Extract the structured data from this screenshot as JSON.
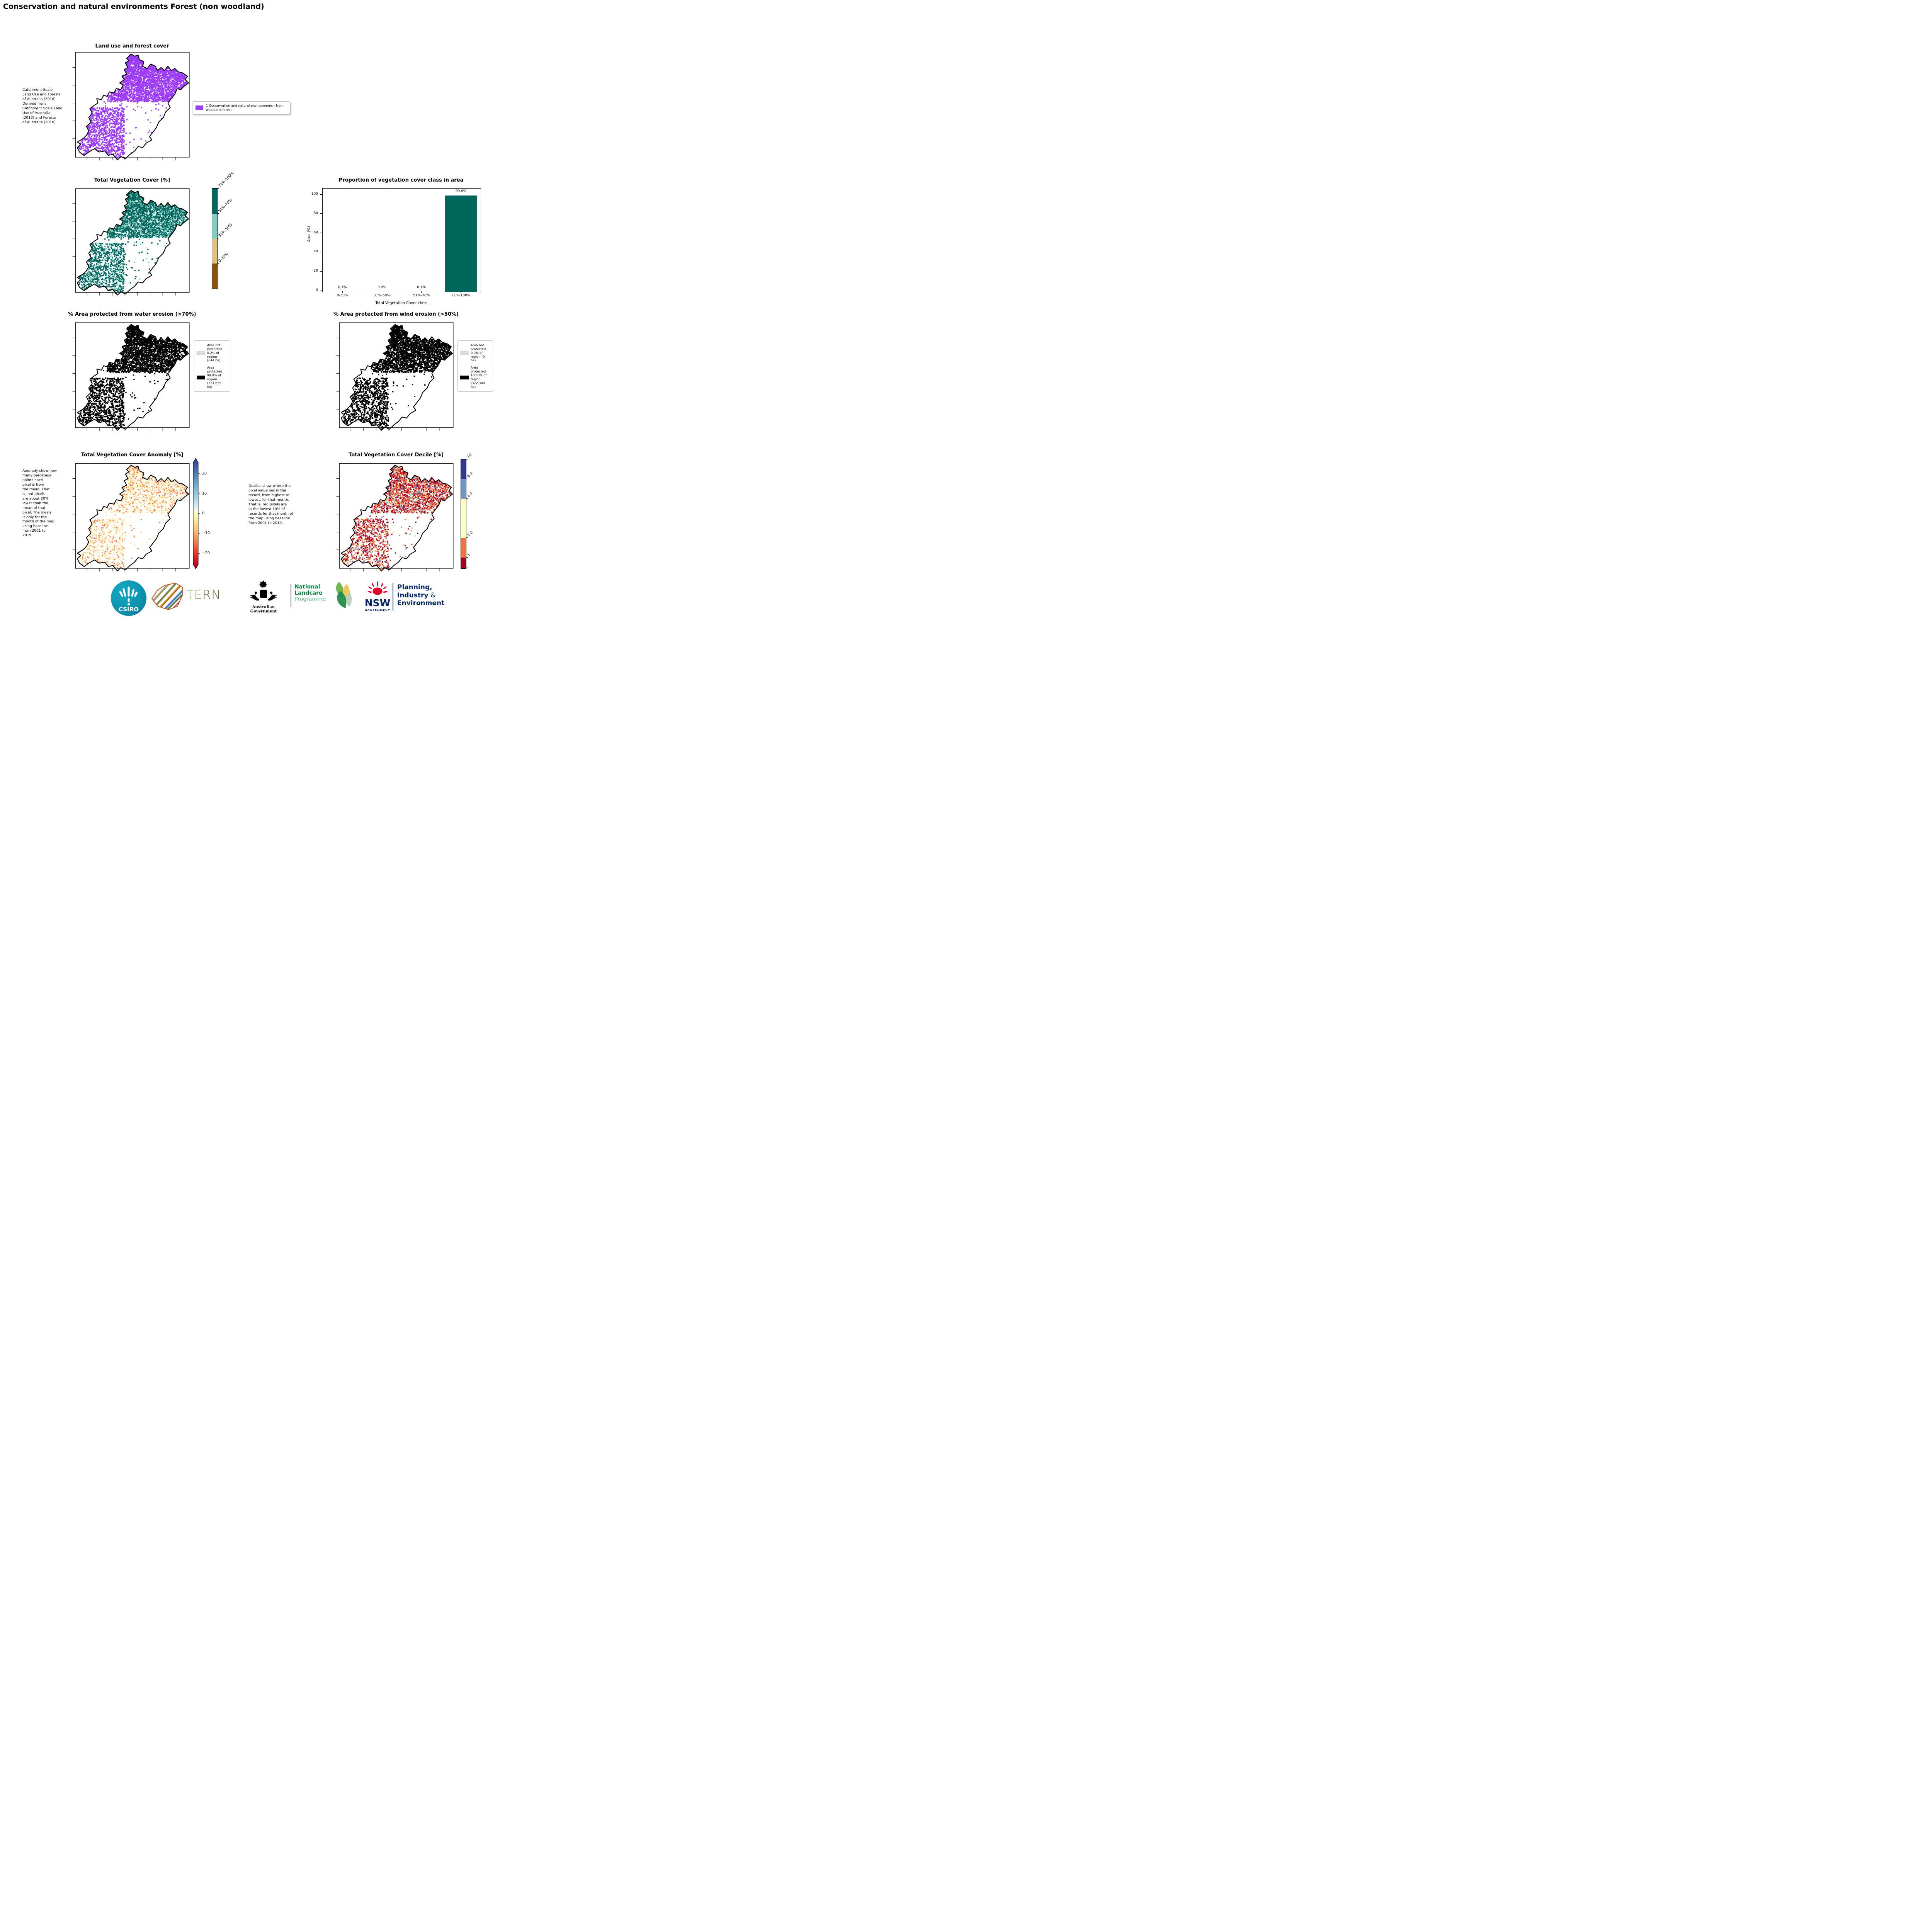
{
  "page_title": "Conservation and natural environments Forest (non woodland)",
  "panels": {
    "land_use": {
      "title": "Land use and forest cover",
      "caption": " Catchment Scale\nLand Use and Forests\nof Australia (2018)\nDerived from\nCatchment Scale Land\nUse of Australia\n(2018) and Forests\nof Australia (2018)",
      "legend": {
        "label": "1 Conservation and natural environments - Non-\nwoodland forest",
        "color": "#9d3cf6"
      }
    },
    "tvc": {
      "title": "Total Vegetation Cover [%]",
      "colorbar": {
        "labels": [
          "71%-100%",
          "51%-70%",
          "31%-50%",
          "0-30%"
        ],
        "colors": [
          "#01665e",
          "#80cdc1",
          "#dfc27d",
          "#8c510a"
        ]
      }
    },
    "water": {
      "title": "% Area protected from water erosion (>70%)",
      "legend": [
        {
          "label": "Area not\nprotected\n0.2% of\nregion\n(644 ha)",
          "color": "#d9d9d9"
        },
        {
          "label": "Area\nprotected\n99.8% of\nregion\n(321,655\nha)",
          "color": "#000000"
        }
      ]
    },
    "wind": {
      "title": "% Area protected from wind erosion (>50%)",
      "legend": [
        {
          "label": "Area not\nprotected\n0.0% of\nregion (0\nha)",
          "color": "#d9d9d9"
        },
        {
          "label": "Area\nprotected\n100.0% of\nregion\n(322,300\nha)",
          "color": "#000000"
        }
      ]
    },
    "anomaly": {
      "title": "Total Vegetation Cover Anomaly [%]",
      "caption": "Anomaly show how\nmany percetage\npoints each\npixel is from\nthe mean. That\nis, red pixels\nare about 20%\nlower than the\nmean of that\npixel. The mean\nis only for the\nmonth of the map\nusing baseline\nfrom 2001 to\n2019.",
      "colorbar": {
        "ticks": [
          "20",
          "10",
          "0",
          "−10",
          "−20"
        ]
      }
    },
    "decile": {
      "title": "Total Vegetation Cover Decile [%]",
      "caption": "Deciles show where the\npixel value lies in the\nrecord, from highest to\nlowest, for that month.\nThat is, red pixels are\nin the lowest 10% of\nrecords for that month of\nthe map using baseline\nfrom 2001 to 2019.",
      "colorbar": {
        "labels": [
          "10",
          "8-9",
          "4-7",
          "2-3",
          "1"
        ],
        "colors": [
          "#313695",
          "#7096cc",
          "#ffffbf",
          "#f4713f",
          "#a50026"
        ]
      }
    }
  },
  "chart_data": {
    "type": "bar",
    "title": "Proportion of vegetation cover class in area",
    "categories": [
      "0-30%",
      "31%-50%",
      "51%-70%",
      "71%-100%"
    ],
    "values": [
      0.1,
      0.0,
      0.1,
      99.8
    ],
    "value_labels": [
      "0.1%",
      "0.0%",
      "0.1%",
      "99.8%"
    ],
    "xlabel": "Total Vegetation Cover class",
    "ylabel": "Area (%)",
    "ylim": [
      0,
      100
    ],
    "yticks": [
      0,
      20,
      40,
      60,
      80,
      100
    ],
    "bar_color": "#01665e",
    "grid": false,
    "legend_position": "none"
  },
  "map_pixels": {
    "land_use": [
      "#9d3cf6"
    ],
    "tvc": [
      "#01665e",
      "#01665e",
      "#01665e",
      "#80cdc1"
    ],
    "water": [
      "#000000"
    ],
    "wind": [
      "#000000"
    ],
    "anomaly": [
      "#fffbc4",
      "#fee090",
      "#fee090",
      "#fdae61",
      "#f46d43"
    ],
    "decile": [
      "#a50026",
      "#a50026",
      "#a50026",
      "#d73027",
      "#f46d43",
      "#f46d43",
      "#fdae61",
      "#ffffbf",
      "#7096cc"
    ]
  },
  "footer": {
    "csiro": {
      "label": "CSIRO",
      "color": "#0d93ad"
    },
    "tern": {
      "label": "TERN",
      "color": "#5f6b2f"
    },
    "ausgov": {
      "label": "Australian Government"
    },
    "landcare": {
      "lines": [
        "National",
        "Landcare",
        "Programme"
      ],
      "green": "#00843d",
      "light_green": "#5bbf8b"
    },
    "nsw": {
      "label": "NSW",
      "sub": "GOVERNMENT",
      "navy": "#002664",
      "red": "#e4002b"
    },
    "pie": {
      "lines": [
        "Planning,",
        "Industry",
        "&",
        "Environment"
      ],
      "navy": "#002664"
    }
  }
}
